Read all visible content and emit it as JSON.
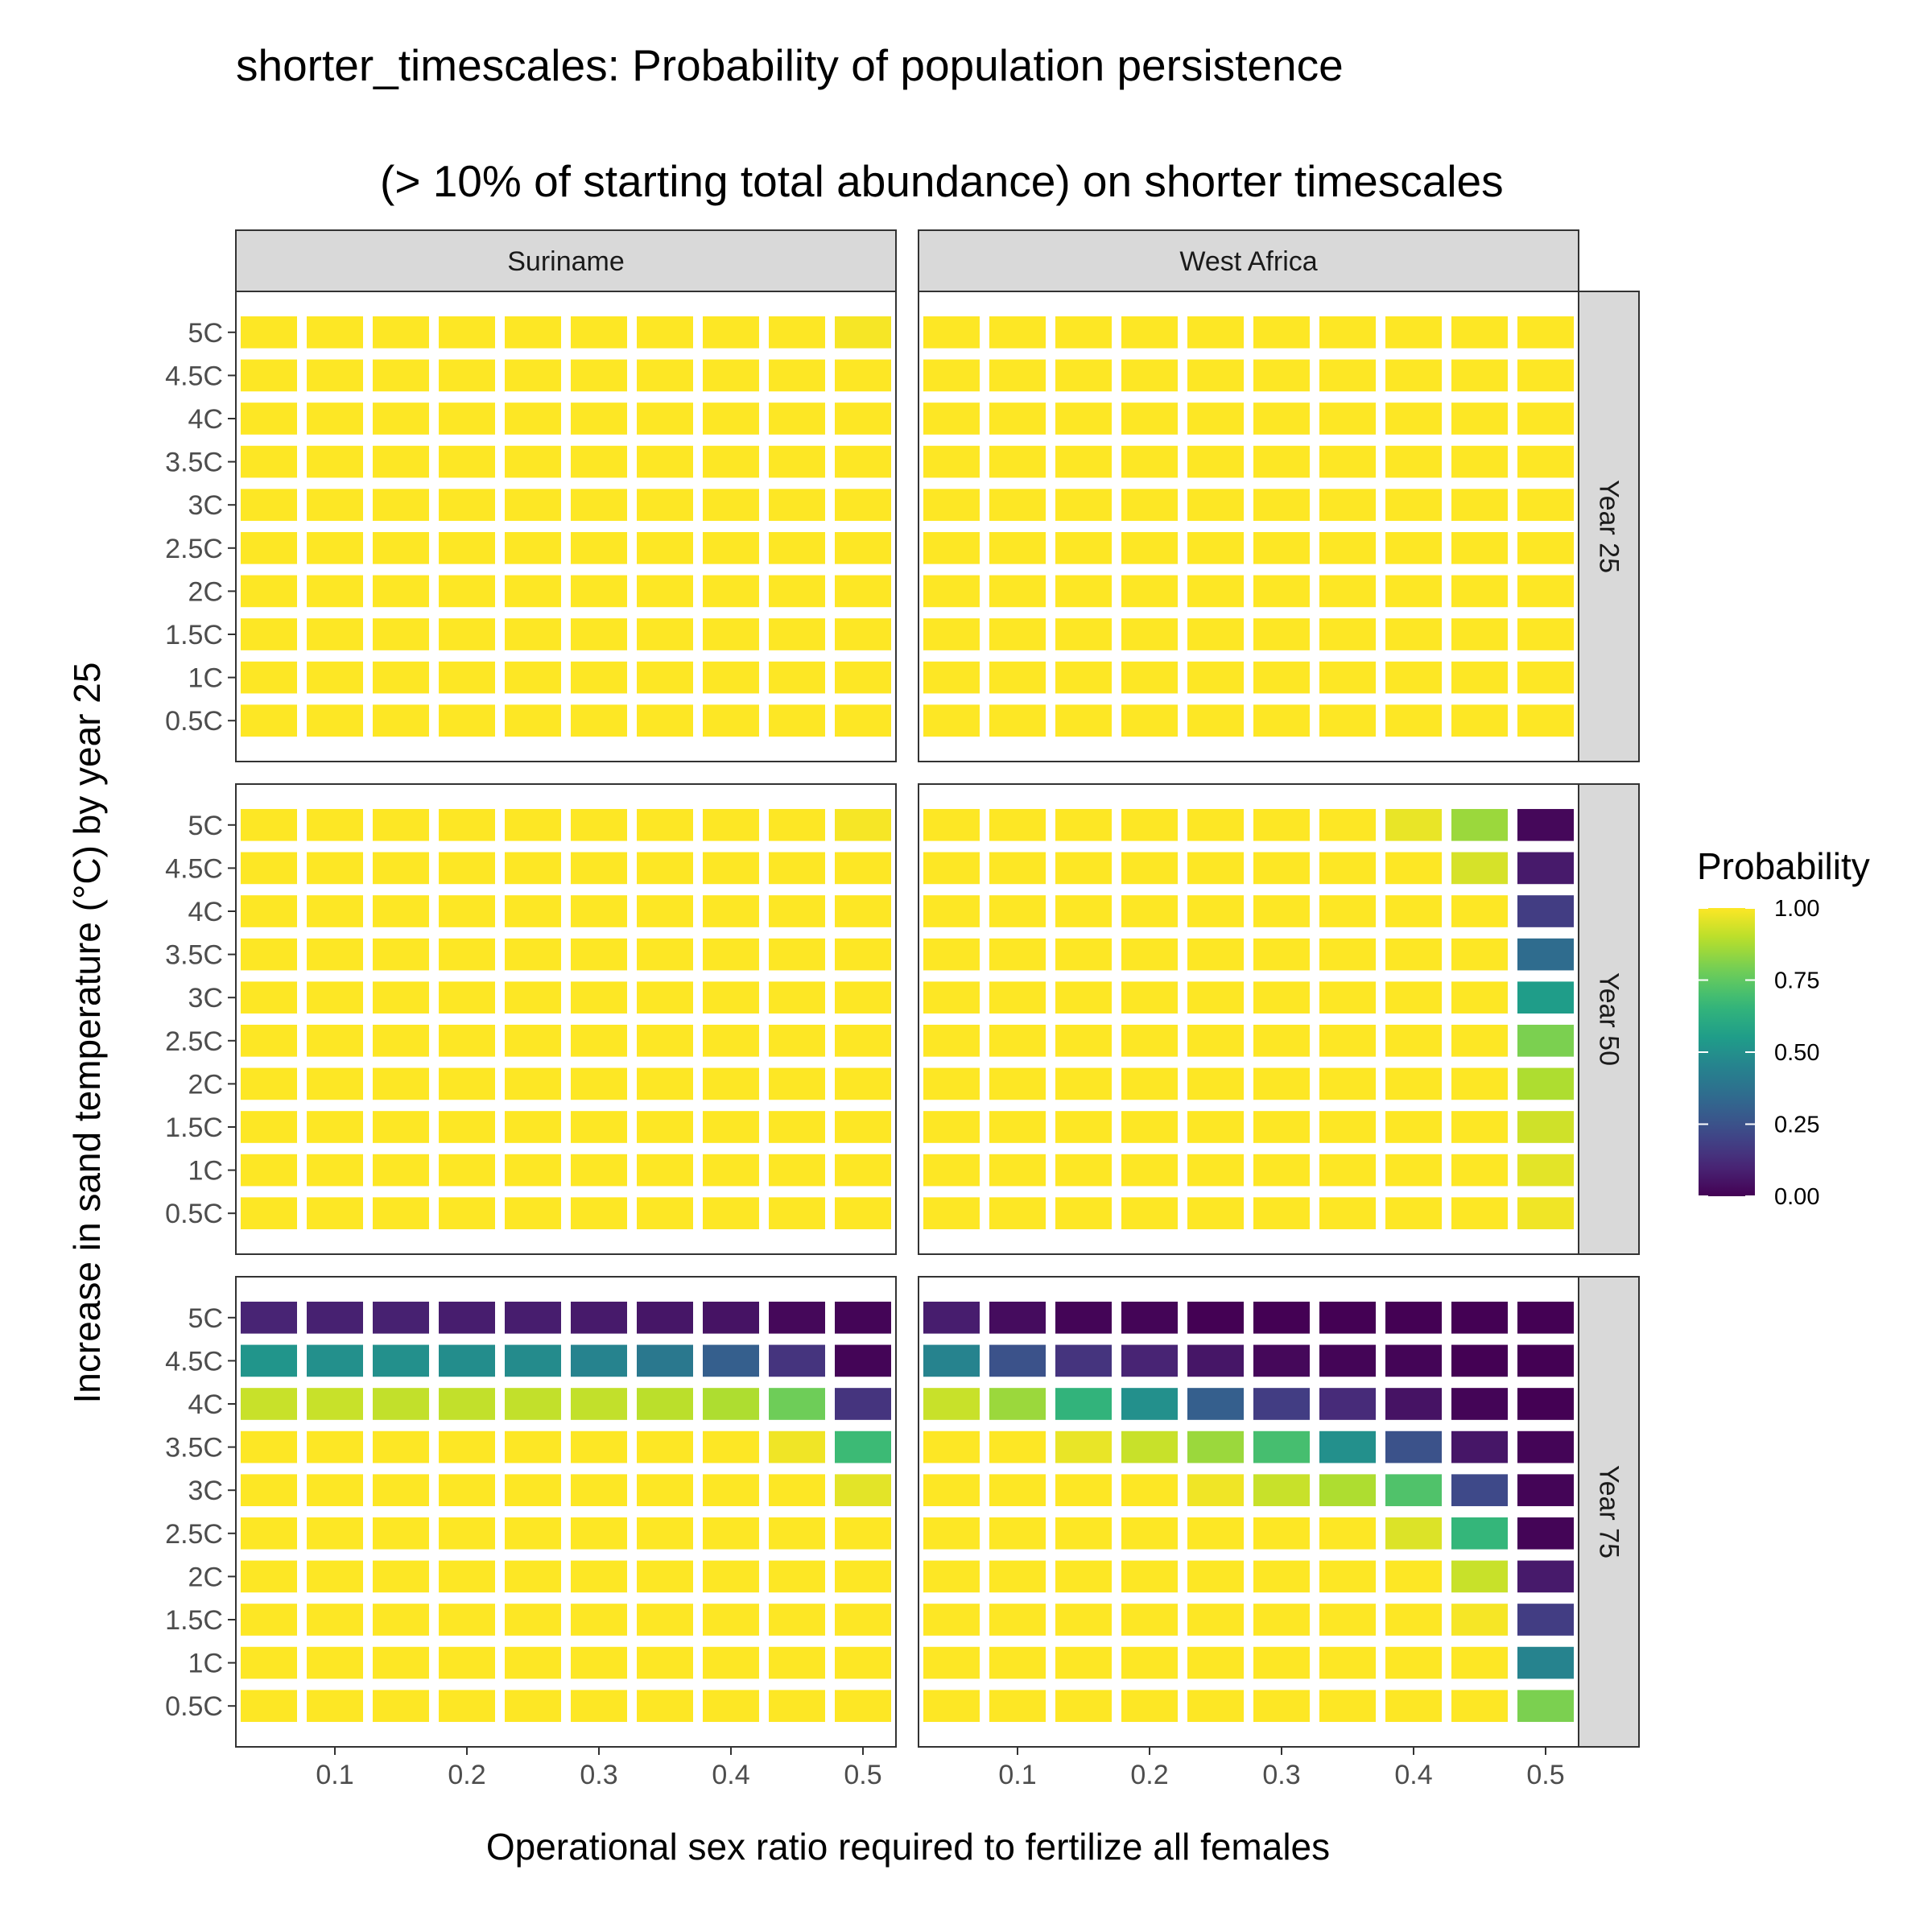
{
  "chart_data": {
    "type": "heatmap",
    "title": "shorter_timescales: Probability of population persistence",
    "subtitle": "(> 10% of starting total abundance) on shorter timescales",
    "xlabel": "Operational sex ratio required to fertilize all females",
    "ylabel": "Increase in sand temperature (°C) by year 25",
    "x_tick_labels": [
      "0.1",
      "0.2",
      "0.3",
      "0.4",
      "0.5"
    ],
    "x_tick_values": [
      0.1,
      0.2,
      0.3,
      0.4,
      0.5
    ],
    "x_values": [
      0.05,
      0.1,
      0.15,
      0.2,
      0.25,
      0.3,
      0.35,
      0.4,
      0.45,
      0.5
    ],
    "xlim": [
      0.025,
      0.525
    ],
    "y_categories": [
      "0.5C",
      "1C",
      "1.5C",
      "2C",
      "2.5C",
      "3C",
      "3.5C",
      "4C",
      "4.5C",
      "5C"
    ],
    "facet_columns": [
      "Suriname",
      "West Africa"
    ],
    "facet_rows": [
      "Year 25",
      "Year 50",
      "Year 75"
    ],
    "legend": {
      "title": "Probability",
      "ticks": [
        "0.00",
        "0.25",
        "0.50",
        "0.75",
        "1.00"
      ],
      "position": "right",
      "colorscale": "viridis",
      "range": [
        0,
        1
      ]
    },
    "grid": false,
    "panels": [
      {
        "column": "Suriname",
        "row": "Year 25",
        "values": [
          [
            1,
            1,
            1,
            1,
            1,
            1,
            1,
            1,
            1,
            1
          ],
          [
            1,
            1,
            1,
            1,
            1,
            1,
            1,
            1,
            1,
            1
          ],
          [
            1,
            1,
            1,
            1,
            1,
            1,
            1,
            1,
            1,
            1
          ],
          [
            1,
            1,
            1,
            1,
            1,
            1,
            1,
            1,
            1,
            1
          ],
          [
            1,
            1,
            1,
            1,
            1,
            1,
            1,
            1,
            1,
            1
          ],
          [
            1,
            1,
            1,
            1,
            1,
            1,
            1,
            1,
            1,
            1
          ],
          [
            1,
            1,
            1,
            1,
            1,
            1,
            1,
            1,
            1,
            1
          ],
          [
            1,
            1,
            1,
            1,
            1,
            1,
            1,
            1,
            1,
            1
          ],
          [
            1,
            1,
            1,
            1,
            1,
            1,
            1,
            1,
            1,
            1
          ],
          [
            1,
            1,
            1,
            1,
            1,
            1,
            1,
            1,
            1,
            0.99
          ]
        ]
      },
      {
        "column": "West Africa",
        "row": "Year 25",
        "values": [
          [
            1,
            1,
            1,
            1,
            1,
            1,
            1,
            1,
            1,
            1
          ],
          [
            1,
            1,
            1,
            1,
            1,
            1,
            1,
            1,
            1,
            1
          ],
          [
            1,
            1,
            1,
            1,
            1,
            1,
            1,
            1,
            1,
            1
          ],
          [
            1,
            1,
            1,
            1,
            1,
            1,
            1,
            1,
            1,
            1
          ],
          [
            1,
            1,
            1,
            1,
            1,
            1,
            1,
            1,
            1,
            1
          ],
          [
            1,
            1,
            1,
            1,
            1,
            1,
            1,
            1,
            1,
            1
          ],
          [
            1,
            1,
            1,
            1,
            1,
            1,
            1,
            1,
            1,
            1
          ],
          [
            1,
            1,
            1,
            1,
            1,
            1,
            1,
            1,
            1,
            1
          ],
          [
            1,
            1,
            1,
            1,
            1,
            1,
            1,
            1,
            1,
            1
          ],
          [
            1,
            1,
            1,
            1,
            1,
            1,
            1,
            1,
            1,
            1
          ]
        ]
      },
      {
        "column": "Suriname",
        "row": "Year 50",
        "values": [
          [
            1,
            1,
            1,
            1,
            1,
            1,
            1,
            1,
            1,
            1
          ],
          [
            1,
            1,
            1,
            1,
            1,
            1,
            1,
            1,
            1,
            1
          ],
          [
            1,
            1,
            1,
            1,
            1,
            1,
            1,
            1,
            1,
            1
          ],
          [
            1,
            1,
            1,
            1,
            1,
            1,
            1,
            1,
            1,
            1
          ],
          [
            1,
            1,
            1,
            1,
            1,
            1,
            1,
            1,
            1,
            1
          ],
          [
            1,
            1,
            1,
            1,
            1,
            1,
            1,
            1,
            1,
            1
          ],
          [
            1,
            1,
            1,
            1,
            1,
            1,
            1,
            1,
            1,
            1
          ],
          [
            1,
            1,
            1,
            1,
            1,
            1,
            1,
            1,
            1,
            1
          ],
          [
            1,
            1,
            1,
            1,
            1,
            1,
            1,
            1,
            1,
            1
          ],
          [
            1,
            1,
            1,
            1,
            1,
            1,
            1,
            1,
            1,
            0.99
          ]
        ]
      },
      {
        "column": "West Africa",
        "row": "Year 50",
        "values": [
          [
            1,
            1,
            1,
            1,
            1,
            1,
            1,
            1,
            1,
            0.98
          ],
          [
            1,
            1,
            1,
            1,
            1,
            1,
            1,
            1,
            1,
            0.96
          ],
          [
            1,
            1,
            1,
            1,
            1,
            1,
            1,
            1,
            1,
            0.93
          ],
          [
            1,
            1,
            1,
            1,
            1,
            1,
            1,
            1,
            1,
            0.88
          ],
          [
            1,
            1,
            1,
            1,
            1,
            1,
            1,
            1,
            1,
            0.8
          ],
          [
            1,
            1,
            1,
            1,
            1,
            1,
            1,
            1,
            1,
            0.55
          ],
          [
            1,
            1,
            1,
            1,
            1,
            1,
            1,
            1,
            1,
            0.35
          ],
          [
            1,
            1,
            1,
            1,
            1,
            1,
            1,
            1,
            1,
            0.18
          ],
          [
            1,
            1,
            1,
            1,
            1,
            1,
            1,
            1,
            0.94,
            0.07
          ],
          [
            1,
            1,
            1,
            1,
            1,
            1,
            1,
            0.97,
            0.85,
            0.02
          ]
        ]
      },
      {
        "column": "Suriname",
        "row": "Year 75",
        "values": [
          [
            1,
            1,
            1,
            1,
            1,
            1,
            1,
            1,
            1,
            1
          ],
          [
            1,
            1,
            1,
            1,
            1,
            1,
            1,
            1,
            1,
            1
          ],
          [
            1,
            1,
            1,
            1,
            1,
            1,
            1,
            1,
            1,
            1
          ],
          [
            1,
            1,
            1,
            1,
            1,
            1,
            1,
            1,
            1,
            1
          ],
          [
            1,
            1,
            1,
            1,
            1,
            1,
            1,
            1,
            1,
            1
          ],
          [
            1,
            1,
            1,
            1,
            1,
            1,
            1,
            1,
            1,
            0.96
          ],
          [
            1,
            1,
            1,
            1,
            1,
            1,
            1,
            1,
            0.98,
            0.68
          ],
          [
            0.92,
            0.92,
            0.91,
            0.91,
            0.91,
            0.91,
            0.9,
            0.88,
            0.78,
            0.15
          ],
          [
            0.52,
            0.5,
            0.5,
            0.49,
            0.48,
            0.45,
            0.4,
            0.3,
            0.15,
            0.01
          ],
          [
            0.1,
            0.09,
            0.09,
            0.08,
            0.08,
            0.07,
            0.06,
            0.05,
            0.02,
            0.01
          ]
        ]
      },
      {
        "column": "West Africa",
        "row": "Year 75",
        "values": [
          [
            1,
            1,
            1,
            1,
            1,
            1,
            1,
            1,
            1,
            0.8
          ],
          [
            1,
            1,
            1,
            1,
            1,
            1,
            1,
            1,
            1,
            0.45
          ],
          [
            1,
            1,
            1,
            1,
            1,
            1,
            1,
            1,
            0.99,
            0.18
          ],
          [
            1,
            1,
            1,
            1,
            1,
            1,
            1,
            1,
            0.92,
            0.07
          ],
          [
            1,
            1,
            1,
            1,
            1,
            1,
            1,
            0.95,
            0.66,
            0.01
          ],
          [
            1,
            1,
            1,
            1,
            0.98,
            0.92,
            0.88,
            0.72,
            0.22,
            0.01
          ],
          [
            1,
            1,
            0.97,
            0.92,
            0.85,
            0.7,
            0.5,
            0.25,
            0.06,
            0.01
          ],
          [
            0.92,
            0.85,
            0.65,
            0.5,
            0.3,
            0.18,
            0.12,
            0.05,
            0.01,
            0.0
          ],
          [
            0.45,
            0.25,
            0.15,
            0.1,
            0.06,
            0.02,
            0.01,
            0.01,
            0.0,
            0.0
          ],
          [
            0.08,
            0.03,
            0.01,
            0.01,
            0.0,
            0.0,
            0.0,
            0.0,
            0.0,
            0.0
          ]
        ]
      }
    ]
  }
}
